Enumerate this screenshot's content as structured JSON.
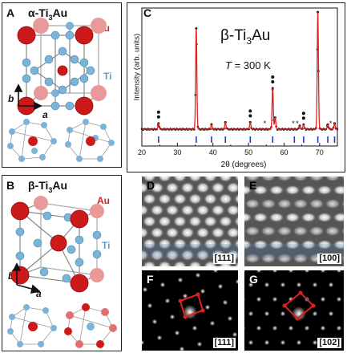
{
  "panel_a": {
    "label": "A",
    "title": "α-Ti",
    "title_sub": "3",
    "title_end": "Au",
    "au_label": "Au",
    "ti_label": "Ti",
    "axis_b": "b",
    "axis_a": "a"
  },
  "panel_b": {
    "label": "B",
    "title": "β-Ti",
    "title_sub": "3",
    "title_end": "Au",
    "au_label": "Au",
    "ti_label": "Ti",
    "axis_b": "b",
    "axis_a": "a"
  },
  "panel_c": {
    "label": "C",
    "formula": "β-Ti",
    "formula_sub": "3",
    "formula_end": "Au",
    "temperature_var": "T",
    "temperature_val": " = 300 K",
    "ylabel": "Intensity (arb. units)",
    "xlabel": "2θ (degrees)"
  },
  "panel_d": {
    "label": "D",
    "zone": "[111]"
  },
  "panel_e": {
    "label": "E",
    "zone": "[100]"
  },
  "panel_f": {
    "label": "F",
    "zone": "[111]"
  },
  "panel_g": {
    "label": "G",
    "zone": "[102]"
  },
  "colors": {
    "fit_line": "#e02020",
    "au_atom": "#cc1a1a",
    "ti_atom": "#7ab4d8",
    "reflection_ticks": "#1a3ccf",
    "cell_outline": "#e02020"
  },
  "chart_data": {
    "type": "line",
    "title": "",
    "xlabel": "2θ (degrees)",
    "ylabel": "Intensity (arb. units)",
    "xlim": [
      20,
      75
    ],
    "x_ticks": [
      20,
      30,
      40,
      50,
      60,
      70
    ],
    "peaks": [
      {
        "x": 24.7,
        "intensity": 0.05
      },
      {
        "x": 35.3,
        "intensity": 0.86
      },
      {
        "x": 39.6,
        "intensity": 0.04
      },
      {
        "x": 43.5,
        "intensity": 0.06
      },
      {
        "x": 50.5,
        "intensity": 0.06
      },
      {
        "x": 56.8,
        "intensity": 0.35
      },
      {
        "x": 57.5,
        "intensity": 0.1
      },
      {
        "x": 64.4,
        "intensity": 0.03
      },
      {
        "x": 65.5,
        "intensity": 0.04
      },
      {
        "x": 69.5,
        "intensity": 1.0
      },
      {
        "x": 72.3,
        "intensity": 0.04
      },
      {
        "x": 74.2,
        "intensity": 0.05
      }
    ],
    "reflection_positions": [
      24.7,
      35.3,
      39.6,
      43.5,
      50.5,
      56.8,
      62.9,
      65.5,
      69.5,
      72.3,
      74.2
    ],
    "dot_markers": [
      24.7,
      50.5,
      56.8,
      65.5
    ],
    "star_markers": [
      54.6,
      62.6,
      63.7,
      73.1
    ],
    "baseline": 0.02
  }
}
